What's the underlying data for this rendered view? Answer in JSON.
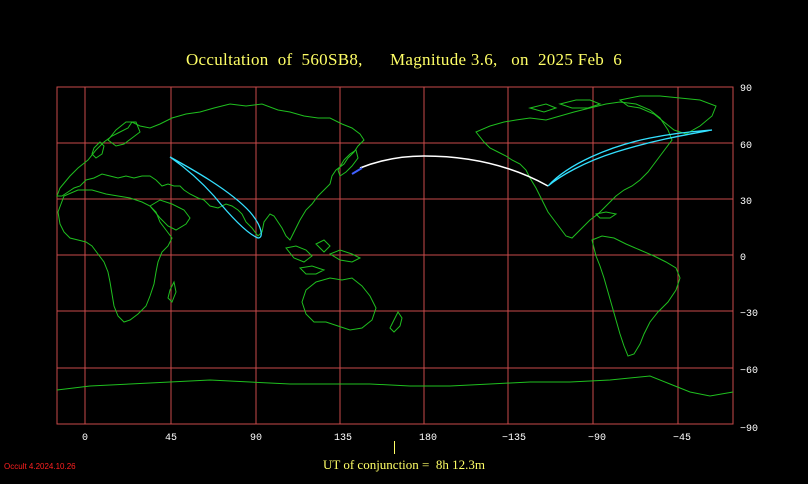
{
  "title": "Occultation  of  560SB8,      Magnitude 3.6,   on  2025 Feb  6",
  "x_ticks": [
    "0",
    "45",
    "90",
    "135",
    "180",
    "−135",
    "−90",
    "−45"
  ],
  "y_ticks": [
    "90",
    "60",
    "30",
    "0",
    "−30",
    "−60",
    "−90"
  ],
  "ut_label": "UT of conjunction =  8h 12.3m",
  "version_label": "Occult 4.2024.10.26",
  "colors": {
    "background": "#000000",
    "grid": "#c84a4a",
    "land": "#1fbf1f",
    "title": "#ffff66",
    "path_daylight": "#ffffff",
    "path_twilight": "#33e0ff",
    "version": "#ff2020"
  }
}
